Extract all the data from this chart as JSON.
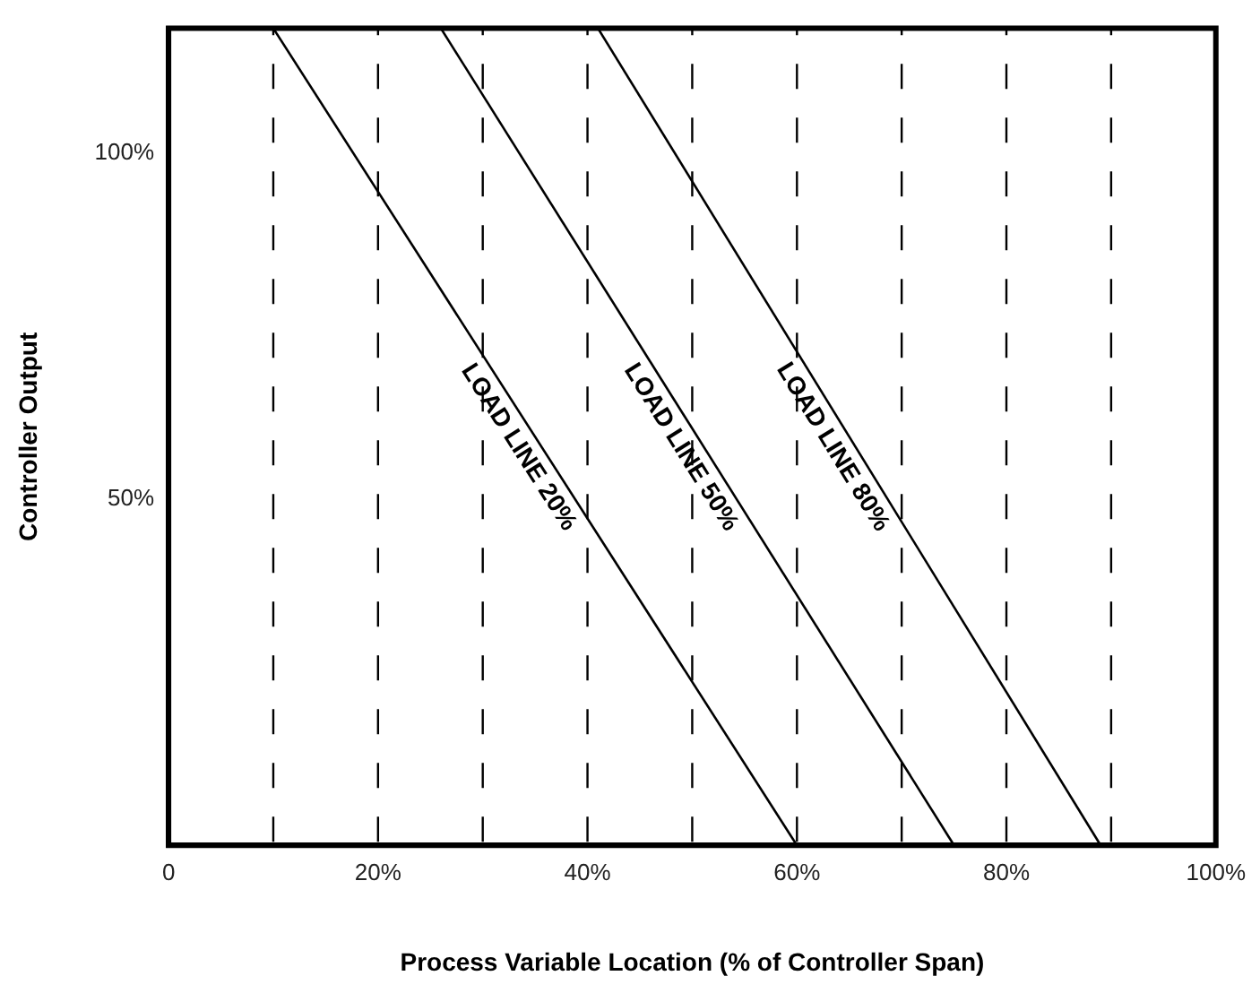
{
  "chart_data": {
    "type": "line",
    "xlabel": "Process Variable Location (% of Controller Span)",
    "ylabel": "Controller Output",
    "xlim": [
      0,
      100
    ],
    "ylim": [
      0,
      118
    ],
    "xticks": [
      0,
      {
        "value": 20,
        "label": "20%"
      },
      {
        "value": 40,
        "label": "40%"
      },
      {
        "value": 60,
        "label": "60%"
      },
      {
        "value": 80,
        "label": "80%"
      },
      {
        "value": 100,
        "label": "100%"
      }
    ],
    "yticks": [
      {
        "value": 50,
        "label": "50%"
      },
      {
        "value": 100,
        "label": "100%"
      }
    ],
    "grid": false,
    "legend": false,
    "marker": "none",
    "line_style": "solid",
    "series": [
      {
        "name": "LOAD LINE 20%",
        "color": "#000000",
        "x": [
          10,
          60
        ],
        "values": [
          118,
          0
        ]
      },
      {
        "name": "LOAD LINE 50%",
        "color": "#000000",
        "x": [
          26,
          75
        ],
        "values": [
          118,
          0
        ]
      },
      {
        "name": "LOAD LINE 80%",
        "color": "#000000",
        "x": [
          41,
          89
        ],
        "values": [
          118,
          0
        ]
      }
    ],
    "ref_lines": [
      {
        "axis": "x",
        "value": 10,
        "color": "#000000",
        "line_style": "dashed"
      },
      {
        "axis": "x",
        "value": 20,
        "color": "#000000",
        "line_style": "dashed"
      },
      {
        "axis": "x",
        "value": 30,
        "color": "#000000",
        "line_style": "dashed"
      },
      {
        "axis": "x",
        "value": 40,
        "color": "#000000",
        "line_style": "dashed"
      },
      {
        "axis": "x",
        "value": 50,
        "color": "#000000",
        "line_style": "dashed"
      },
      {
        "axis": "x",
        "value": 60,
        "color": "#000000",
        "line_style": "dashed"
      },
      {
        "axis": "x",
        "value": 70,
        "color": "#000000",
        "line_style": "dashed"
      },
      {
        "axis": "x",
        "value": 80,
        "color": "#000000",
        "line_style": "dashed"
      },
      {
        "axis": "x",
        "value": 90,
        "color": "#000000",
        "line_style": "dashed"
      }
    ]
  }
}
